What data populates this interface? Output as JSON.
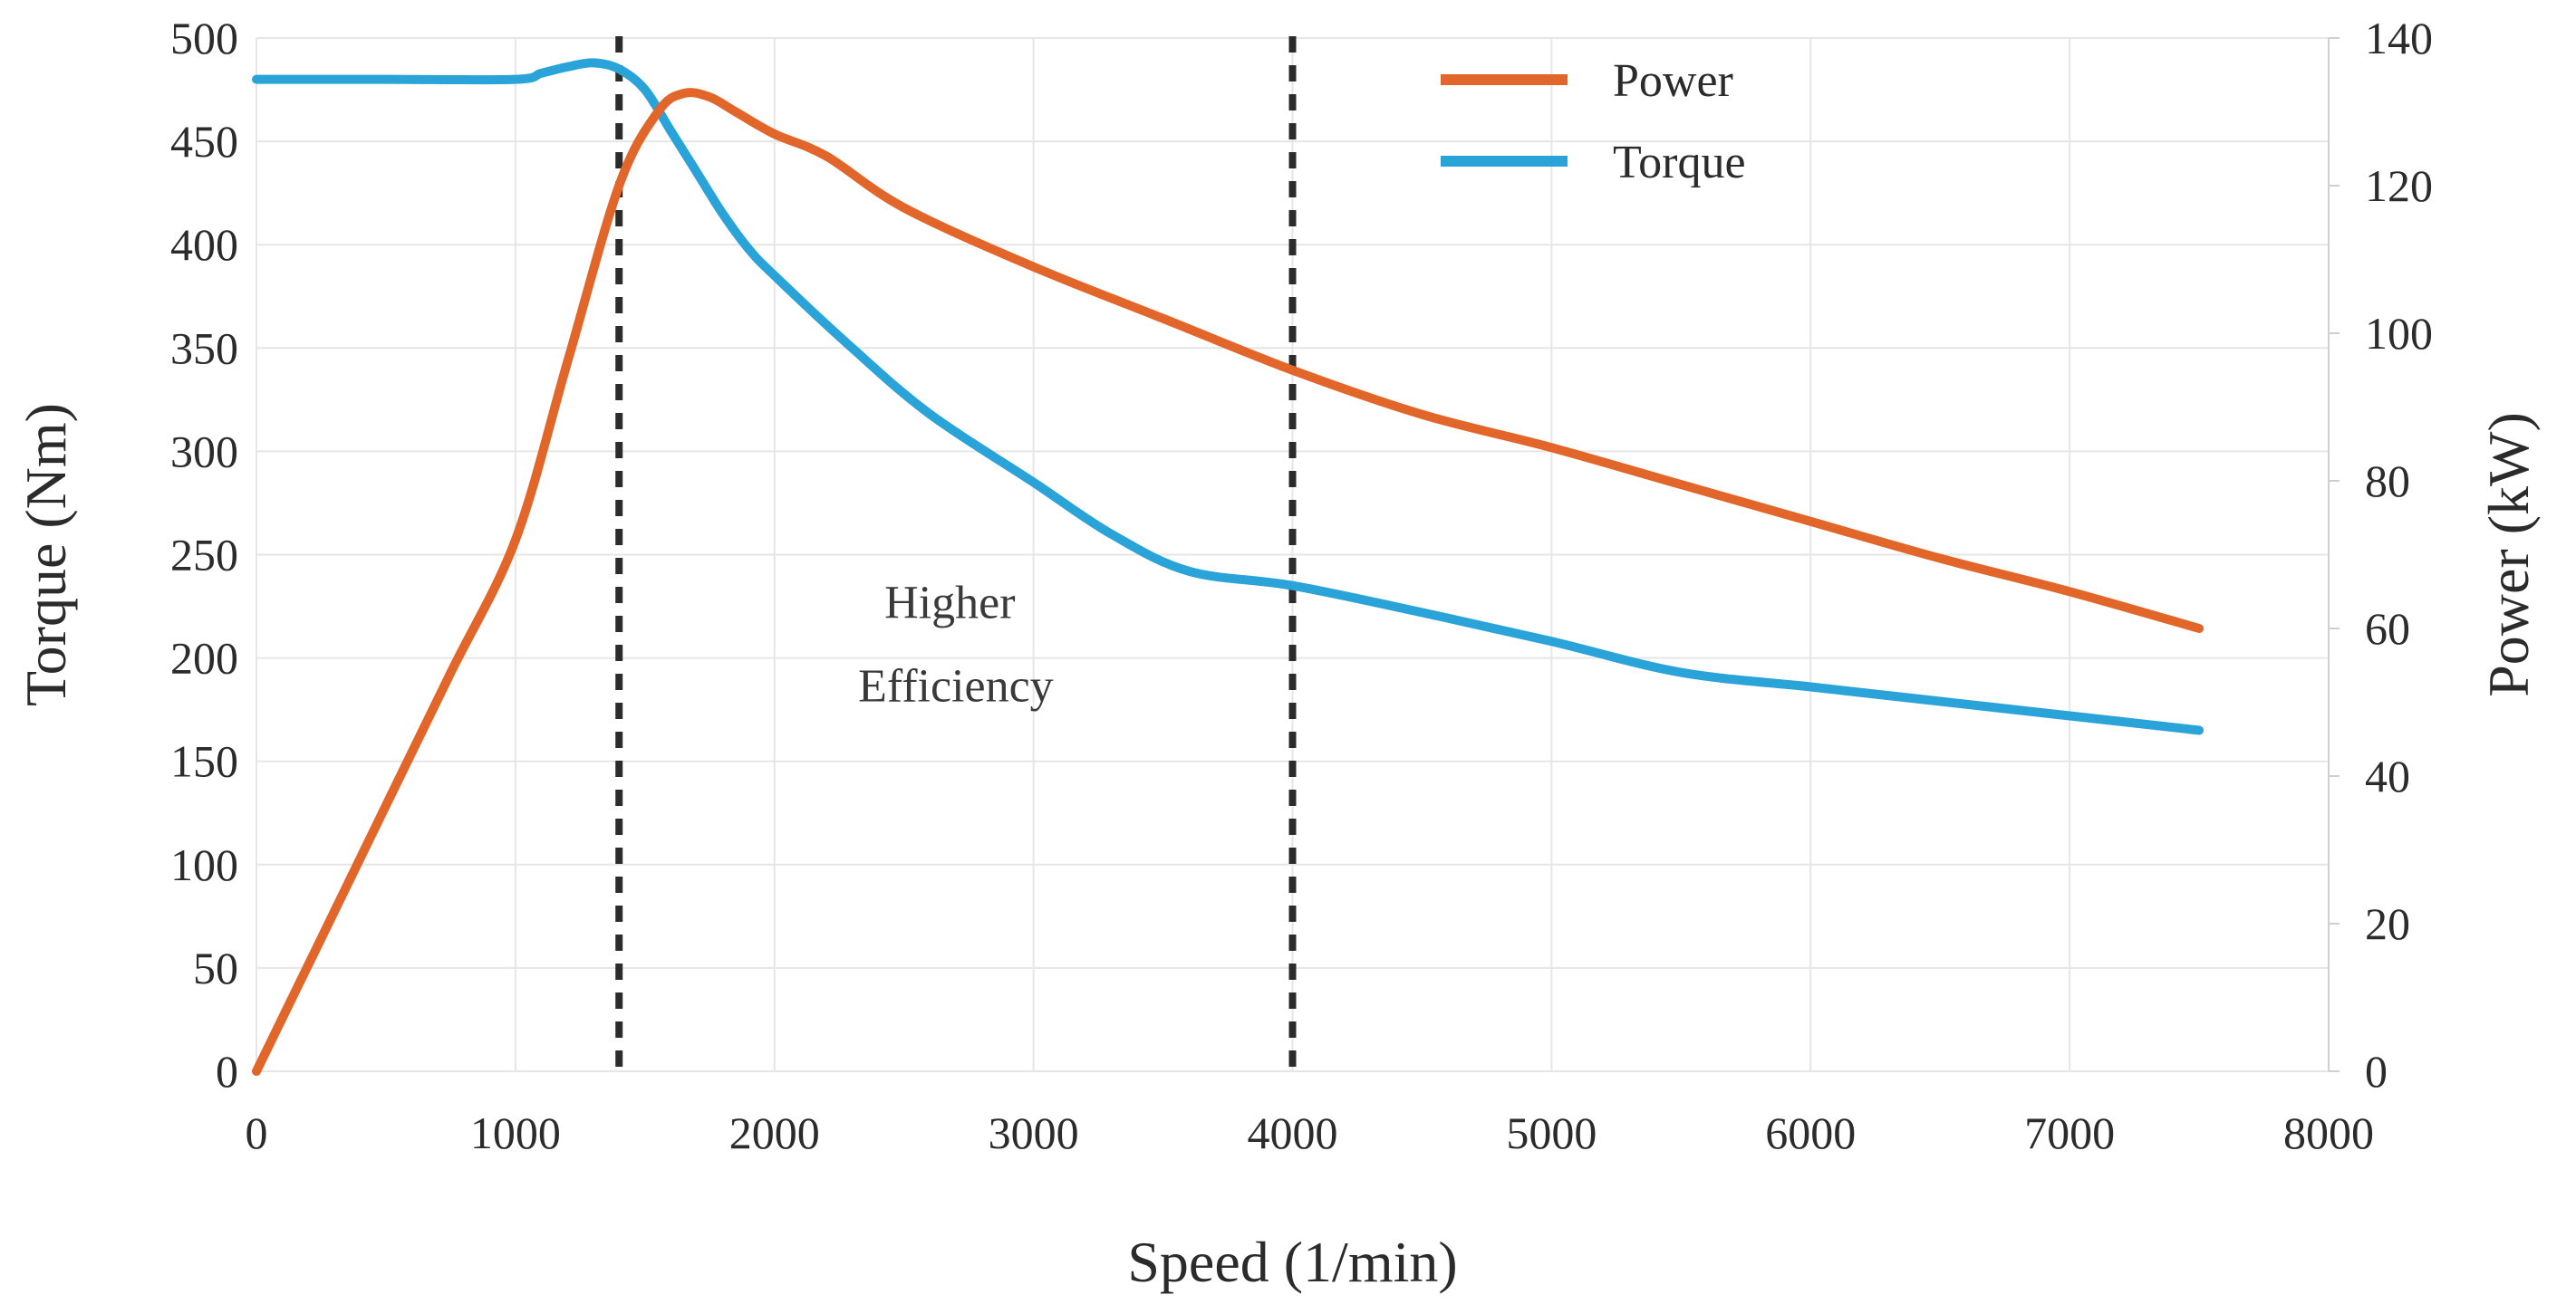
{
  "chart_data": {
    "type": "line",
    "xlabel": "Speed (1/min)",
    "ylabel": "Torque (Nm)",
    "y2label": "Power (kW)",
    "xlim": [
      0,
      8000
    ],
    "ylim": [
      0,
      500
    ],
    "y2lim": [
      0,
      140
    ],
    "xticks": [
      0,
      1000,
      2000,
      3000,
      4000,
      5000,
      6000,
      7000,
      8000
    ],
    "yticks": [
      0,
      50,
      100,
      150,
      200,
      250,
      300,
      350,
      400,
      450,
      500
    ],
    "y2ticks": [
      0,
      20,
      40,
      60,
      80,
      100,
      120,
      140
    ],
    "grid": true,
    "legend": "top-right",
    "series": [
      {
        "name": "Power",
        "axis": "right",
        "color": "#e2652a",
        "x": [
          0,
          250,
          500,
          750,
          1000,
          1200,
          1400,
          1550,
          1650,
          1750,
          1850,
          2000,
          2200,
          2500,
          3000,
          3500,
          4000,
          4500,
          5000,
          5500,
          6000,
          6500,
          7000,
          7500
        ],
        "y": [
          0,
          18,
          36,
          54,
          72,
          96,
          120,
          130,
          132.5,
          132,
          130,
          127,
          124,
          117,
          109,
          102,
          95,
          89,
          84.5,
          79.5,
          74.5,
          69.5,
          65,
          60
        ]
      },
      {
        "name": "Torque",
        "axis": "left",
        "color": "#2aa3d8",
        "x": [
          0,
          500,
          1000,
          1100,
          1200,
          1300,
          1400,
          1500,
          1600,
          1700,
          1800,
          1900,
          2000,
          2300,
          2600,
          3000,
          3300,
          3600,
          4000,
          4500,
          5000,
          5500,
          6000,
          6500,
          7000,
          7500
        ],
        "y": [
          480,
          480,
          480,
          483,
          486,
          488,
          485,
          475,
          455,
          435,
          415,
          398,
          385,
          350,
          318,
          285,
          260,
          242,
          235,
          222,
          208,
          193,
          186,
          179,
          172,
          165
        ]
      }
    ],
    "annotations": [
      {
        "lines": [
          "Higher",
          "Efficiency"
        ],
        "x": 2700,
        "y": 215
      }
    ],
    "vlines": [
      1400,
      4000
    ]
  }
}
